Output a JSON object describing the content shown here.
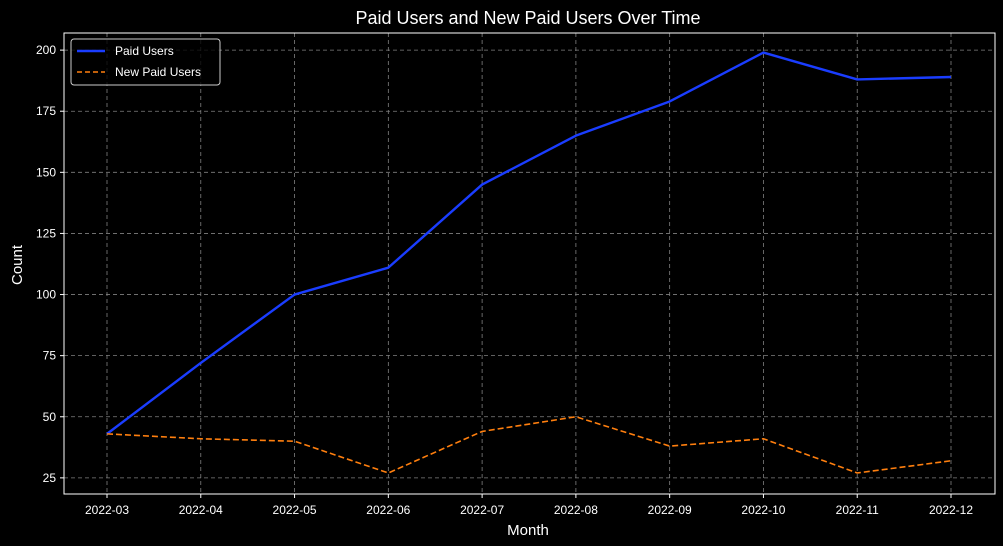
{
  "chart_data": {
    "type": "line",
    "title": "Paid Users and New Paid Users Over Time",
    "xlabel": "Month",
    "ylabel": "Count",
    "categories": [
      "2022-03",
      "2022-04",
      "2022-05",
      "2022-06",
      "2022-07",
      "2022-08",
      "2022-09",
      "2022-10",
      "2022-11",
      "2022-12"
    ],
    "ylim": [
      18.4,
      207
    ],
    "yticks": [
      25,
      50,
      75,
      100,
      125,
      150,
      175,
      200
    ],
    "grid": true,
    "legend_position": "top-left",
    "series": [
      {
        "name": "Paid Users",
        "values": [
          43,
          72,
          100,
          111,
          145,
          165,
          179,
          199,
          188,
          189
        ],
        "color": "#1a3dff",
        "style": "solid"
      },
      {
        "name": "New Paid Users",
        "values": [
          43,
          41,
          40,
          27,
          44,
          50,
          38,
          41,
          27,
          32
        ],
        "color": "#ff7f0e",
        "style": "dashed"
      }
    ],
    "background_color": "#000000",
    "text_color": "#ffffff",
    "grid_color": "#808080"
  }
}
